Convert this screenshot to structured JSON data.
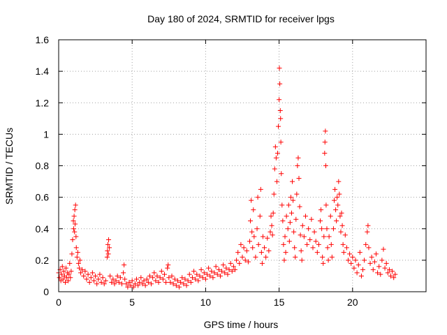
{
  "chart_data": {
    "type": "scatter",
    "title": "Day 180 of 2024, SRMTID for receiver lpgs",
    "xlabel": "GPS time / hours",
    "ylabel": "SRMTID / TECUs",
    "xlim": [
      0,
      25
    ],
    "ylim": [
      0,
      1.6
    ],
    "grid": true,
    "marker": "+",
    "marker_color": "#ff0000",
    "x_ticks": [
      0,
      5,
      10,
      15,
      20
    ],
    "x_tick_labels": [
      "0",
      "5",
      "10",
      "15",
      "20"
    ],
    "y_ticks": [
      0,
      0.2,
      0.4,
      0.6,
      0.8,
      1.0,
      1.2,
      1.4,
      1.6
    ],
    "y_tick_labels": [
      "0",
      "0.2",
      "0.4",
      "0.6",
      "0.8",
      "1",
      "1.2",
      "1.4",
      "1.6"
    ],
    "series": [
      {
        "name": "lpgs",
        "points": [
          [
            0.0,
            0.12
          ],
          [
            0.05,
            0.09
          ],
          [
            0.1,
            0.14
          ],
          [
            0.15,
            0.07
          ],
          [
            0.2,
            0.11
          ],
          [
            0.25,
            0.16
          ],
          [
            0.3,
            0.08
          ],
          [
            0.35,
            0.13
          ],
          [
            0.4,
            0.1
          ],
          [
            0.45,
            0.06
          ],
          [
            0.5,
            0.15
          ],
          [
            0.55,
            0.09
          ],
          [
            0.6,
            0.12
          ],
          [
            0.65,
            0.07
          ],
          [
            0.7,
            0.11
          ],
          [
            0.75,
            0.18
          ],
          [
            0.8,
            0.09
          ],
          [
            0.85,
            0.13
          ],
          [
            0.9,
            0.24
          ],
          [
            0.95,
            0.33
          ],
          [
            1.0,
            0.45
          ],
          [
            1.02,
            0.4
          ],
          [
            1.05,
            0.48
          ],
          [
            1.08,
            0.38
          ],
          [
            1.1,
            0.52
          ],
          [
            1.12,
            0.43
          ],
          [
            1.15,
            0.55
          ],
          [
            1.18,
            0.35
          ],
          [
            1.2,
            0.28
          ],
          [
            1.25,
            0.22
          ],
          [
            1.3,
            0.25
          ],
          [
            1.35,
            0.18
          ],
          [
            1.4,
            0.15
          ],
          [
            1.45,
            0.2
          ],
          [
            1.5,
            0.12
          ],
          [
            1.6,
            0.14
          ],
          [
            1.7,
            0.1
          ],
          [
            1.8,
            0.13
          ],
          [
            1.9,
            0.08
          ],
          [
            2.0,
            0.11
          ],
          [
            2.1,
            0.06
          ],
          [
            2.2,
            0.09
          ],
          [
            2.3,
            0.12
          ],
          [
            2.4,
            0.07
          ],
          [
            2.5,
            0.1
          ],
          [
            2.6,
            0.05
          ],
          [
            2.7,
            0.08
          ],
          [
            2.8,
            0.11
          ],
          [
            2.9,
            0.06
          ],
          [
            3.0,
            0.09
          ],
          [
            3.1,
            0.05
          ],
          [
            3.2,
            0.07
          ],
          [
            3.3,
            0.22
          ],
          [
            3.32,
            0.26
          ],
          [
            3.35,
            0.3
          ],
          [
            3.38,
            0.24
          ],
          [
            3.4,
            0.33
          ],
          [
            3.45,
            0.28
          ],
          [
            3.5,
            0.1
          ],
          [
            3.6,
            0.06
          ],
          [
            3.7,
            0.08
          ],
          [
            3.8,
            0.05
          ],
          [
            3.9,
            0.07
          ],
          [
            4.0,
            0.1
          ],
          [
            4.1,
            0.06
          ],
          [
            4.2,
            0.09
          ],
          [
            4.3,
            0.05
          ],
          [
            4.4,
            0.12
          ],
          [
            4.45,
            0.17
          ],
          [
            4.5,
            0.08
          ],
          [
            4.6,
            0.05
          ],
          [
            4.7,
            0.03
          ],
          [
            4.8,
            0.06
          ],
          [
            4.9,
            0.04
          ],
          [
            5.0,
            0.07
          ],
          [
            5.1,
            0.03
          ],
          [
            5.2,
            0.05
          ],
          [
            5.3,
            0.08
          ],
          [
            5.4,
            0.04
          ],
          [
            5.5,
            0.06
          ],
          [
            5.6,
            0.09
          ],
          [
            5.7,
            0.05
          ],
          [
            5.8,
            0.07
          ],
          [
            5.9,
            0.04
          ],
          [
            6.0,
            0.08
          ],
          [
            6.1,
            0.06
          ],
          [
            6.2,
            0.1
          ],
          [
            6.3,
            0.05
          ],
          [
            6.4,
            0.09
          ],
          [
            6.5,
            0.12
          ],
          [
            6.6,
            0.07
          ],
          [
            6.7,
            0.1
          ],
          [
            6.8,
            0.06
          ],
          [
            6.9,
            0.09
          ],
          [
            7.0,
            0.13
          ],
          [
            7.1,
            0.08
          ],
          [
            7.2,
            0.11
          ],
          [
            7.3,
            0.06
          ],
          [
            7.4,
            0.15
          ],
          [
            7.45,
            0.17
          ],
          [
            7.5,
            0.09
          ],
          [
            7.6,
            0.06
          ],
          [
            7.7,
            0.1
          ],
          [
            7.8,
            0.05
          ],
          [
            7.9,
            0.08
          ],
          [
            8.0,
            0.04
          ],
          [
            8.1,
            0.07
          ],
          [
            8.2,
            0.03
          ],
          [
            8.3,
            0.06
          ],
          [
            8.4,
            0.09
          ],
          [
            8.5,
            0.05
          ],
          [
            8.6,
            0.08
          ],
          [
            8.7,
            0.04
          ],
          [
            8.8,
            0.07
          ],
          [
            8.9,
            0.11
          ],
          [
            9.0,
            0.06
          ],
          [
            9.1,
            0.09
          ],
          [
            9.2,
            0.13
          ],
          [
            9.3,
            0.08
          ],
          [
            9.4,
            0.11
          ],
          [
            9.5,
            0.07
          ],
          [
            9.6,
            0.1
          ],
          [
            9.7,
            0.14
          ],
          [
            9.8,
            0.09
          ],
          [
            9.9,
            0.12
          ],
          [
            10.0,
            0.08
          ],
          [
            10.1,
            0.11
          ],
          [
            10.2,
            0.15
          ],
          [
            10.3,
            0.1
          ],
          [
            10.4,
            0.13
          ],
          [
            10.5,
            0.09
          ],
          [
            10.6,
            0.12
          ],
          [
            10.7,
            0.16
          ],
          [
            10.8,
            0.11
          ],
          [
            10.9,
            0.14
          ],
          [
            11.0,
            0.1
          ],
          [
            11.1,
            0.13
          ],
          [
            11.2,
            0.17
          ],
          [
            11.3,
            0.12
          ],
          [
            11.4,
            0.15
          ],
          [
            11.5,
            0.11
          ],
          [
            11.6,
            0.14
          ],
          [
            11.7,
            0.18
          ],
          [
            11.8,
            0.13
          ],
          [
            11.9,
            0.16
          ],
          [
            12.0,
            0.14
          ],
          [
            12.1,
            0.2
          ],
          [
            12.2,
            0.25
          ],
          [
            12.3,
            0.18
          ],
          [
            12.4,
            0.3
          ],
          [
            12.5,
            0.22
          ],
          [
            12.6,
            0.28
          ],
          [
            12.7,
            0.2
          ],
          [
            12.8,
            0.26
          ],
          [
            12.9,
            0.19
          ],
          [
            13.0,
            0.32
          ],
          [
            13.05,
            0.45
          ],
          [
            13.1,
            0.58
          ],
          [
            13.15,
            0.38
          ],
          [
            13.2,
            0.28
          ],
          [
            13.25,
            0.52
          ],
          [
            13.3,
            0.35
          ],
          [
            13.4,
            0.22
          ],
          [
            13.5,
            0.4
          ],
          [
            13.55,
            0.6
          ],
          [
            13.6,
            0.3
          ],
          [
            13.7,
            0.48
          ],
          [
            13.75,
            0.65
          ],
          [
            13.8,
            0.25
          ],
          [
            13.85,
            0.18
          ],
          [
            13.9,
            0.35
          ],
          [
            14.0,
            0.28
          ],
          [
            14.1,
            0.22
          ],
          [
            14.2,
            0.34
          ],
          [
            14.3,
            0.26
          ],
          [
            14.4,
            0.38
          ],
          [
            14.45,
            0.48
          ],
          [
            14.5,
            0.42
          ],
          [
            14.55,
            0.36
          ],
          [
            14.6,
            0.5
          ],
          [
            14.65,
            0.62
          ],
          [
            14.7,
            0.78
          ],
          [
            14.75,
            0.92
          ],
          [
            14.8,
            0.85
          ],
          [
            14.85,
            0.7
          ],
          [
            14.9,
            0.88
          ],
          [
            14.95,
            1.05
          ],
          [
            15.0,
            1.22
          ],
          [
            15.02,
            1.42
          ],
          [
            15.05,
            1.32
          ],
          [
            15.08,
            1.15
          ],
          [
            15.1,
            1.1
          ],
          [
            15.12,
            0.95
          ],
          [
            15.15,
            0.75
          ],
          [
            15.2,
            0.55
          ],
          [
            15.25,
            0.45
          ],
          [
            15.3,
            0.3
          ],
          [
            15.35,
            0.2
          ],
          [
            15.4,
            0.35
          ],
          [
            15.45,
            0.25
          ],
          [
            15.5,
            0.48
          ],
          [
            15.6,
            0.4
          ],
          [
            15.65,
            0.55
          ],
          [
            15.7,
            0.32
          ],
          [
            15.75,
            0.44
          ],
          [
            15.8,
            0.6
          ],
          [
            15.85,
            0.5
          ],
          [
            15.9,
            0.7
          ],
          [
            15.95,
            0.58
          ],
          [
            16.0,
            0.38
          ],
          [
            16.05,
            0.28
          ],
          [
            16.1,
            0.22
          ],
          [
            16.15,
            0.46
          ],
          [
            16.2,
            0.62
          ],
          [
            16.25,
            0.8
          ],
          [
            16.3,
            0.85
          ],
          [
            16.35,
            0.72
          ],
          [
            16.4,
            0.54
          ],
          [
            16.45,
            0.36
          ],
          [
            16.5,
            0.26
          ],
          [
            16.55,
            0.2
          ],
          [
            16.6,
            0.42
          ],
          [
            16.7,
            0.35
          ],
          [
            16.8,
            0.48
          ],
          [
            16.9,
            0.3
          ],
          [
            17.0,
            0.4
          ],
          [
            17.1,
            0.33
          ],
          [
            17.2,
            0.46
          ],
          [
            17.3,
            0.28
          ],
          [
            17.4,
            0.38
          ],
          [
            17.5,
            0.32
          ],
          [
            17.6,
            0.25
          ],
          [
            17.7,
            0.3
          ],
          [
            17.8,
            0.45
          ],
          [
            17.85,
            0.52
          ],
          [
            17.9,
            0.4
          ],
          [
            17.95,
            0.22
          ],
          [
            18.0,
            0.18
          ],
          [
            18.05,
            0.35
          ],
          [
            18.1,
            0.88
          ],
          [
            18.12,
            0.95
          ],
          [
            18.15,
            1.02
          ],
          [
            18.18,
            0.8
          ],
          [
            18.2,
            0.55
          ],
          [
            18.25,
            0.4
          ],
          [
            18.3,
            0.28
          ],
          [
            18.35,
            0.2
          ],
          [
            18.4,
            0.35
          ],
          [
            18.5,
            0.48
          ],
          [
            18.55,
            0.3
          ],
          [
            18.6,
            0.22
          ],
          [
            18.7,
            0.4
          ],
          [
            18.75,
            0.58
          ],
          [
            18.8,
            0.65
          ],
          [
            18.85,
            0.52
          ],
          [
            18.9,
            0.45
          ],
          [
            18.95,
            0.6
          ],
          [
            19.0,
            0.55
          ],
          [
            19.05,
            0.7
          ],
          [
            19.1,
            0.62
          ],
          [
            19.15,
            0.48
          ],
          [
            19.2,
            0.38
          ],
          [
            19.25,
            0.5
          ],
          [
            19.3,
            0.42
          ],
          [
            19.35,
            0.3
          ],
          [
            19.4,
            0.25
          ],
          [
            19.5,
            0.36
          ],
          [
            19.6,
            0.28
          ],
          [
            19.7,
            0.2
          ],
          [
            19.8,
            0.24
          ],
          [
            19.9,
            0.18
          ],
          [
            20.0,
            0.22
          ],
          [
            20.1,
            0.15
          ],
          [
            20.2,
            0.2
          ],
          [
            20.3,
            0.12
          ],
          [
            20.4,
            0.17
          ],
          [
            20.5,
            0.25
          ],
          [
            20.6,
            0.1
          ],
          [
            20.7,
            0.14
          ],
          [
            20.8,
            0.2
          ],
          [
            20.9,
            0.3
          ],
          [
            21.0,
            0.38
          ],
          [
            21.05,
            0.42
          ],
          [
            21.1,
            0.28
          ],
          [
            21.2,
            0.18
          ],
          [
            21.3,
            0.22
          ],
          [
            21.4,
            0.14
          ],
          [
            21.5,
            0.19
          ],
          [
            21.6,
            0.24
          ],
          [
            21.7,
            0.12
          ],
          [
            21.8,
            0.16
          ],
          [
            21.9,
            0.11
          ],
          [
            22.0,
            0.2
          ],
          [
            22.1,
            0.27
          ],
          [
            22.2,
            0.15
          ],
          [
            22.3,
            0.18
          ],
          [
            22.4,
            0.12
          ],
          [
            22.5,
            0.14
          ],
          [
            22.6,
            0.1
          ],
          [
            22.7,
            0.13
          ],
          [
            22.8,
            0.09
          ],
          [
            22.9,
            0.11
          ]
        ]
      }
    ]
  }
}
